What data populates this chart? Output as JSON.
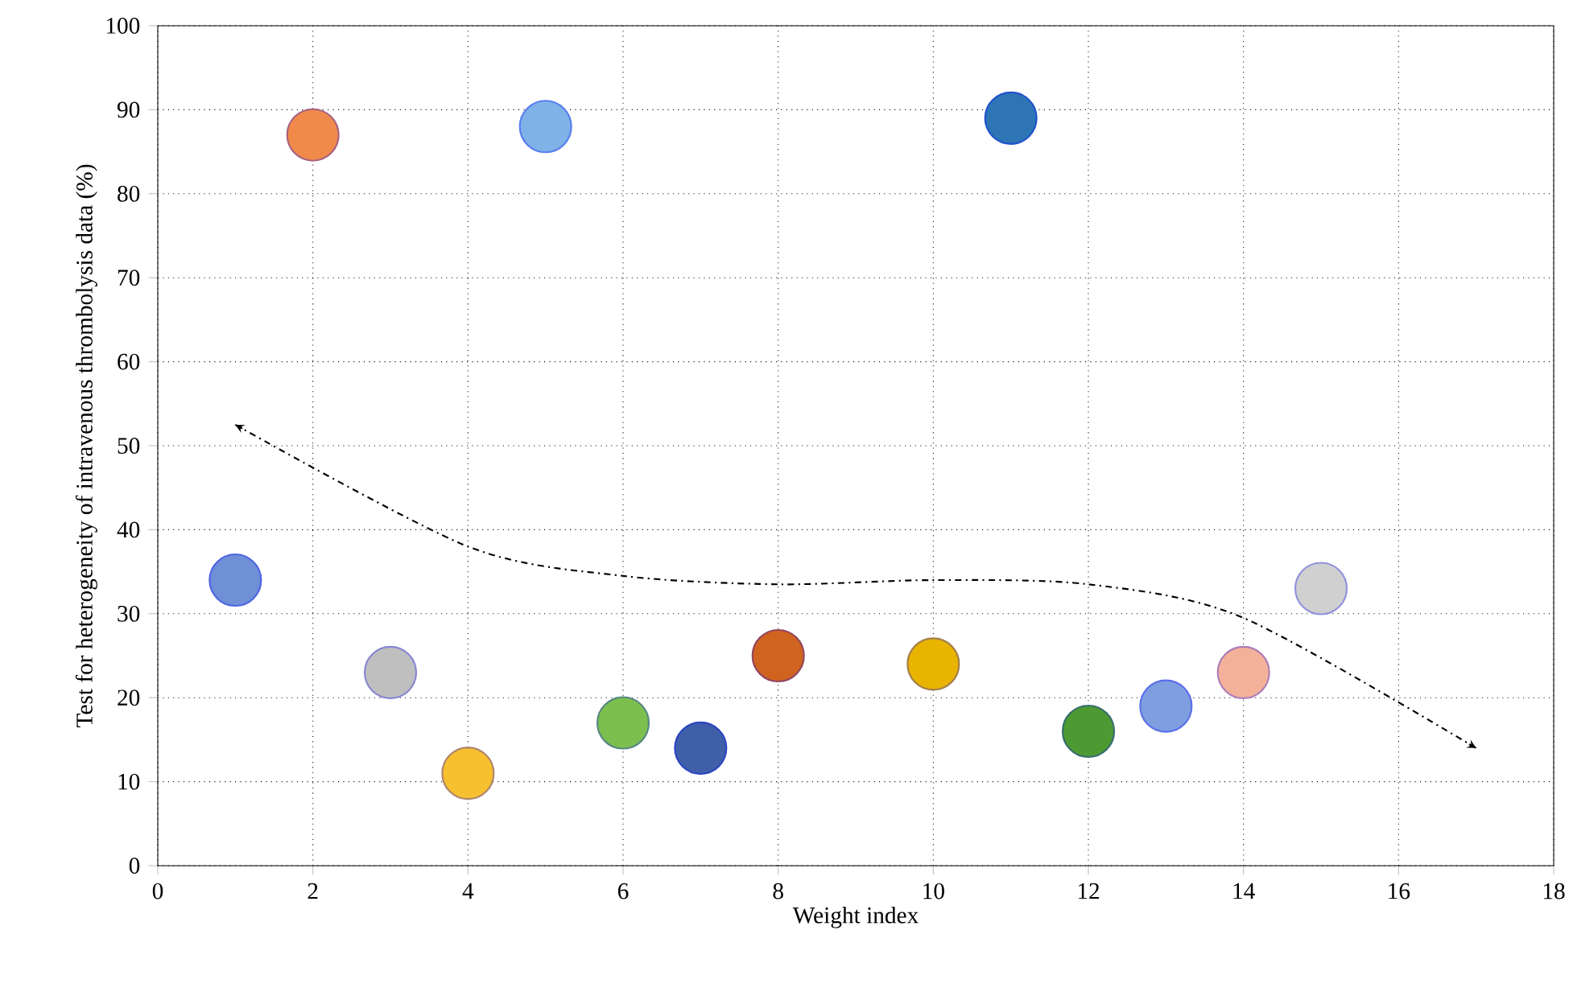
{
  "chart_data": {
    "type": "line",
    "xlabel": "Weight index",
    "ylabel": "Test for heterogeneity of intravenous thrombolysis data (%)",
    "series": [
      {
        "type": "scatter",
        "marker": "circle",
        "x": [
          1,
          2,
          3,
          4,
          5,
          6,
          7,
          8,
          10,
          11,
          12,
          13,
          14,
          15
        ],
        "values": [
          34,
          87,
          23,
          11,
          88,
          17,
          14,
          25,
          24,
          89,
          16,
          19,
          23,
          33
        ],
        "colors": [
          "#6f8fd6",
          "#f08a4b",
          "#bfbfbf",
          "#f7c02f",
          "#7fb3e8",
          "#7cbf4f",
          "#3f5fa8",
          "#d0641e",
          "#e8b400",
          "#2e75b6",
          "#4e9a32",
          "#7f9ee0",
          "#f4b19a",
          "#d0d0d0"
        ]
      },
      {
        "marker": "none",
        "line_style": "dashed",
        "color": "#000000",
        "x": [
          1,
          4,
          6,
          8,
          10,
          12,
          14,
          17
        ],
        "values": [
          52.5,
          38,
          34.5,
          33.5,
          34,
          33.5,
          29.5,
          14
        ]
      }
    ],
    "xlim": [
      0,
      18
    ],
    "xticks": [
      0,
      2,
      4,
      6,
      8,
      10,
      12,
      14,
      16,
      18
    ],
    "ylim": [
      0,
      100
    ],
    "yticks": [
      0,
      10,
      20,
      30,
      40,
      50,
      60,
      70,
      80,
      90,
      100
    ],
    "grid": true
  }
}
